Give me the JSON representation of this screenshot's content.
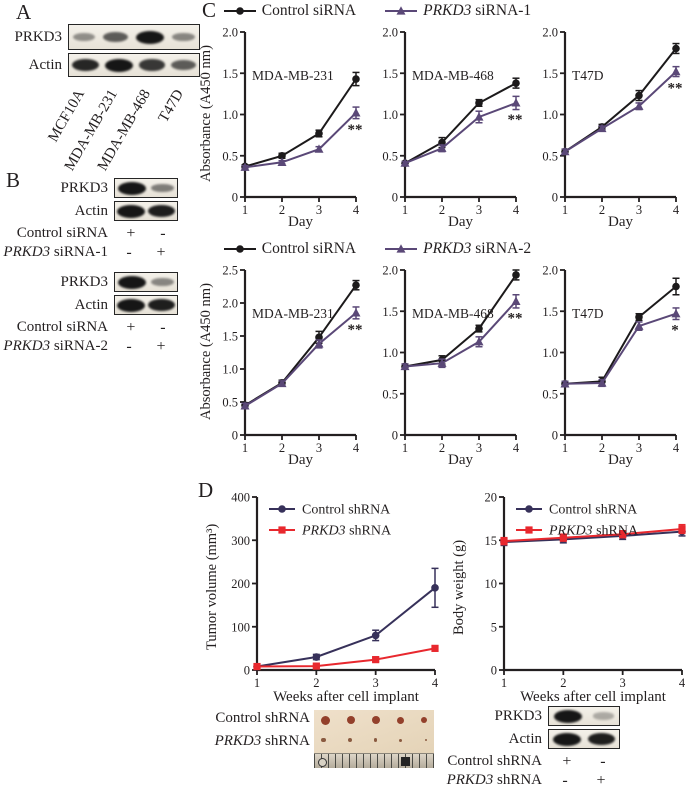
{
  "colors": {
    "ink": "#231f20",
    "control_sirna": "#1c1a1b",
    "prkd3_sirna": "#5a4877",
    "control_shrna": "#37315a",
    "prkd3_shrna": "#e8282e"
  },
  "panel_a": {
    "label": "A",
    "blots": [
      {
        "label": "PRKD3",
        "bands": [
          0.3,
          0.6,
          1.0,
          0.35
        ]
      },
      {
        "label": "Actin",
        "bands": [
          0.9,
          1.0,
          0.8,
          0.6
        ]
      }
    ],
    "lanes": [
      "MCF10A",
      "MDA-MB-231",
      "MDA-MB-468",
      "T47D"
    ]
  },
  "panel_b": {
    "label": "B",
    "groups": [
      {
        "blots": [
          {
            "label": "PRKD3",
            "bands": [
              1.0,
              0.4
            ]
          },
          {
            "label": "Actin",
            "bands": [
              1.0,
              0.95
            ]
          }
        ],
        "conditions": [
          {
            "em": null,
            "label": "Control siRNA",
            "signs": [
              "+",
              "-"
            ]
          },
          {
            "em": "PRKD3",
            "label": " siRNA-1",
            "signs": [
              "-",
              "+"
            ]
          }
        ]
      },
      {
        "blots": [
          {
            "label": "PRKD3",
            "bands": [
              1.0,
              0.35
            ]
          },
          {
            "label": "Actin",
            "bands": [
              1.0,
              0.95
            ]
          }
        ],
        "conditions": [
          {
            "em": null,
            "label": "Control siRNA",
            "signs": [
              "+",
              "-"
            ]
          },
          {
            "em": "PRKD3",
            "label": " siRNA-2",
            "signs": [
              "-",
              "+"
            ]
          }
        ]
      }
    ]
  },
  "panel_c": {
    "label": "C",
    "legends": [
      {
        "items": [
          {
            "em": null,
            "label": "Control siRNA",
            "marker": "circle",
            "color": "control_sirna"
          },
          {
            "em": "PRKD3",
            "label": " siRNA-1",
            "marker": "triangle",
            "color": "prkd3_sirna"
          }
        ]
      },
      {
        "items": [
          {
            "em": null,
            "label": "Control siRNA",
            "marker": "circle",
            "color": "control_sirna"
          },
          {
            "em": "PRKD3",
            "label": " siRNA-2",
            "marker": "triangle",
            "color": "prkd3_sirna"
          }
        ]
      }
    ]
  },
  "panel_d": {
    "label": "D",
    "photo_rows": [
      {
        "em": null,
        "label": "Control shRNA"
      },
      {
        "em": "PRKD3",
        "label": " shRNA"
      }
    ],
    "photo": {
      "top_dot_sizes": [
        9,
        8.5,
        8,
        7,
        6
      ],
      "bottom_dot_sizes": [
        4.5,
        4,
        3.5,
        3,
        2.5
      ],
      "top_dot_color": "#93402b",
      "bottom_dot_color": "#8a5a40"
    },
    "blots": [
      {
        "label": "PRKD3",
        "bands": [
          1.0,
          0.15
        ]
      },
      {
        "label": "Actin",
        "bands": [
          1.0,
          0.95
        ]
      }
    ],
    "conditions": [
      {
        "em": null,
        "label": "Control shRNA",
        "signs": [
          "+",
          "-"
        ]
      },
      {
        "em": "PRKD3",
        "label": " shRNA",
        "signs": [
          "-",
          "+"
        ]
      }
    ]
  },
  "chart_data": [
    {
      "type": "line",
      "title": "MDA-MB-231",
      "xlabel": "Day",
      "ylabel": "Absorbance (A450 nm)",
      "x": [
        1,
        2,
        3,
        4
      ],
      "ylim": [
        0,
        2.0
      ],
      "yticks": [
        {
          "v": 0,
          "label": "0"
        },
        {
          "v": 0.5,
          "label": "0.5"
        },
        {
          "v": 1.0,
          "label": "1.0"
        },
        {
          "v": 1.5,
          "label": "1.5"
        },
        {
          "v": 2.0,
          "label": "2.0"
        }
      ],
      "series": [
        {
          "name": "Control siRNA",
          "marker": "circle",
          "color": "control_sirna",
          "values": [
            0.37,
            0.5,
            0.77,
            1.43
          ],
          "errors": [
            0.02,
            0.03,
            0.04,
            0.08
          ]
        },
        {
          "name": "PRKD3 siRNA-1",
          "marker": "triangle",
          "color": "prkd3_sirna",
          "values": [
            0.36,
            0.42,
            0.58,
            1.02
          ],
          "errors": [
            0.02,
            0.02,
            0.03,
            0.07
          ]
        }
      ],
      "annotation": "**"
    },
    {
      "type": "line",
      "title": "MDA-MB-468",
      "xlabel": "Day",
      "ylabel": "",
      "x": [
        1,
        2,
        3,
        4
      ],
      "ylim": [
        0,
        2.0
      ],
      "yticks": [
        {
          "v": 0,
          "label": "0"
        },
        {
          "v": 0.5,
          "label": "0.5"
        },
        {
          "v": 1.0,
          "label": "1.0"
        },
        {
          "v": 1.5,
          "label": "1.5"
        },
        {
          "v": 2.0,
          "label": "2.0"
        }
      ],
      "series": [
        {
          "name": "Control siRNA",
          "marker": "circle",
          "color": "control_sirna",
          "values": [
            0.41,
            0.66,
            1.14,
            1.38
          ],
          "errors": [
            0.02,
            0.06,
            0.04,
            0.06
          ]
        },
        {
          "name": "PRKD3 siRNA-1",
          "marker": "triangle",
          "color": "prkd3_sirna",
          "values": [
            0.41,
            0.59,
            0.97,
            1.14
          ],
          "errors": [
            0.02,
            0.04,
            0.07,
            0.08
          ]
        }
      ],
      "annotation": "**"
    },
    {
      "type": "line",
      "title": "T47D",
      "xlabel": "Day",
      "ylabel": "",
      "x": [
        1,
        2,
        3,
        4
      ],
      "ylim": [
        0,
        2.0
      ],
      "yticks": [
        {
          "v": 0,
          "label": "0"
        },
        {
          "v": 0.5,
          "label": "0.5"
        },
        {
          "v": 1.0,
          "label": "1.0"
        },
        {
          "v": 1.5,
          "label": "1.5"
        },
        {
          "v": 2.0,
          "label": "2.0"
        }
      ],
      "series": [
        {
          "name": "Control siRNA",
          "marker": "circle",
          "color": "control_sirna",
          "values": [
            0.55,
            0.85,
            1.23,
            1.8
          ],
          "errors": [
            0.03,
            0.03,
            0.06,
            0.06
          ]
        },
        {
          "name": "PRKD3 siRNA-1",
          "marker": "triangle",
          "color": "prkd3_sirna",
          "values": [
            0.55,
            0.83,
            1.1,
            1.52
          ],
          "errors": [
            0.03,
            0.03,
            0.04,
            0.06
          ]
        }
      ],
      "annotation": "**"
    },
    {
      "type": "line",
      "title": "MDA-MB-231",
      "xlabel": "Day",
      "ylabel": "Absorbance (A450 nm)",
      "x": [
        1,
        2,
        3,
        4
      ],
      "ylim": [
        0,
        2.5
      ],
      "yticks": [
        {
          "v": 0,
          "label": "0"
        },
        {
          "v": 0.5,
          "label": "0.5"
        },
        {
          "v": 1.0,
          "label": "1.0"
        },
        {
          "v": 1.5,
          "label": "1.5"
        },
        {
          "v": 2.0,
          "label": "2.0"
        },
        {
          "v": 2.5,
          "label": "2.5"
        }
      ],
      "series": [
        {
          "name": "Control siRNA",
          "marker": "circle",
          "color": "control_sirna",
          "values": [
            0.45,
            0.79,
            1.48,
            2.27
          ],
          "errors": [
            0.04,
            0.04,
            0.09,
            0.07
          ]
        },
        {
          "name": "PRKD3 siRNA-2",
          "marker": "triangle",
          "color": "prkd3_sirna",
          "values": [
            0.44,
            0.78,
            1.38,
            1.85
          ],
          "errors": [
            0.04,
            0.04,
            0.06,
            0.09
          ]
        }
      ],
      "annotation": "**"
    },
    {
      "type": "line",
      "title": "MDA-MB-468",
      "xlabel": "Day",
      "ylabel": "",
      "x": [
        1,
        2,
        3,
        4
      ],
      "ylim": [
        0,
        2.0
      ],
      "yticks": [
        {
          "v": 0,
          "label": "0"
        },
        {
          "v": 0.5,
          "label": "0.5"
        },
        {
          "v": 1.0,
          "label": "1.0"
        },
        {
          "v": 1.5,
          "label": "1.5"
        },
        {
          "v": 2.0,
          "label": "2.0"
        }
      ],
      "series": [
        {
          "name": "Control siRNA",
          "marker": "circle",
          "color": "control_sirna",
          "values": [
            0.83,
            0.91,
            1.29,
            1.94
          ],
          "errors": [
            0.03,
            0.05,
            0.04,
            0.06
          ]
        },
        {
          "name": "PRKD3 siRNA-2",
          "marker": "triangle",
          "color": "prkd3_sirna",
          "values": [
            0.83,
            0.87,
            1.13,
            1.62
          ],
          "errors": [
            0.03,
            0.05,
            0.06,
            0.08
          ]
        }
      ],
      "annotation": "**"
    },
    {
      "type": "line",
      "title": "T47D",
      "xlabel": "Day",
      "ylabel": "",
      "x": [
        1,
        2,
        3,
        4
      ],
      "ylim": [
        0,
        2.0
      ],
      "yticks": [
        {
          "v": 0,
          "label": "0"
        },
        {
          "v": 0.5,
          "label": "0.5"
        },
        {
          "v": 1.0,
          "label": "1.0"
        },
        {
          "v": 1.5,
          "label": "1.5"
        },
        {
          "v": 2.0,
          "label": "2.0"
        }
      ],
      "series": [
        {
          "name": "Control siRNA",
          "marker": "circle",
          "color": "control_sirna",
          "values": [
            0.62,
            0.65,
            1.43,
            1.8
          ],
          "errors": [
            0.03,
            0.05,
            0.04,
            0.1
          ]
        },
        {
          "name": "PRKD3 siRNA-2",
          "marker": "triangle",
          "color": "prkd3_sirna",
          "values": [
            0.62,
            0.63,
            1.32,
            1.47
          ],
          "errors": [
            0.03,
            0.04,
            0.05,
            0.07
          ]
        }
      ],
      "annotation": "*"
    },
    {
      "type": "line",
      "title": "",
      "xlabel": "Weeks after cell implant",
      "ylabel": "Tumor volume (mm³)",
      "x": [
        1,
        2,
        3,
        4
      ],
      "ylim": [
        0,
        400
      ],
      "yticks": [
        {
          "v": 0,
          "label": "0"
        },
        {
          "v": 100,
          "label": "100"
        },
        {
          "v": 200,
          "label": "200"
        },
        {
          "v": 300,
          "label": "300"
        },
        {
          "v": 400,
          "label": "400"
        }
      ],
      "series": [
        {
          "name": "Control shRNA",
          "marker": "circle",
          "color": "control_shrna",
          "values": [
            8,
            30,
            80,
            190
          ],
          "errors": [
            3,
            6,
            12,
            45
          ]
        },
        {
          "name": "PRKD3 shRNA",
          "marker": "square",
          "color": "prkd3_shrna",
          "values": [
            8,
            9,
            24,
            50
          ],
          "errors": [
            2,
            2,
            4,
            5
          ]
        }
      ],
      "legend": [
        {
          "em": null,
          "label": "Control shRNA",
          "marker": "circle",
          "color": "control_shrna"
        },
        {
          "em": "PRKD3",
          "label": " shRNA",
          "marker": "square",
          "color": "prkd3_shrna"
        }
      ]
    },
    {
      "type": "line",
      "title": "",
      "xlabel": "Weeks after cell implant",
      "ylabel": "Body weight (g)",
      "x": [
        1,
        2,
        3,
        4
      ],
      "ylim": [
        0,
        20
      ],
      "yticks": [
        {
          "v": 0,
          "label": "0"
        },
        {
          "v": 5,
          "label": "5"
        },
        {
          "v": 10,
          "label": "10"
        },
        {
          "v": 15,
          "label": "15"
        },
        {
          "v": 20,
          "label": "20"
        }
      ],
      "series": [
        {
          "name": "Control shRNA",
          "marker": "circle",
          "color": "control_shrna",
          "values": [
            14.8,
            15.1,
            15.5,
            16.0
          ],
          "errors": [
            0.4,
            0.4,
            0.4,
            0.5
          ]
        },
        {
          "name": "PRKD3 shRNA",
          "marker": "square",
          "color": "prkd3_shrna",
          "values": [
            14.9,
            15.3,
            15.7,
            16.3
          ],
          "errors": [
            0.4,
            0.4,
            0.4,
            0.5
          ]
        }
      ],
      "legend": [
        {
          "em": null,
          "label": "Control shRNA",
          "marker": "circle",
          "color": "control_shrna"
        },
        {
          "em": "PRKD3",
          "label": " shRNA",
          "marker": "square",
          "color": "prkd3_shrna"
        }
      ]
    }
  ]
}
